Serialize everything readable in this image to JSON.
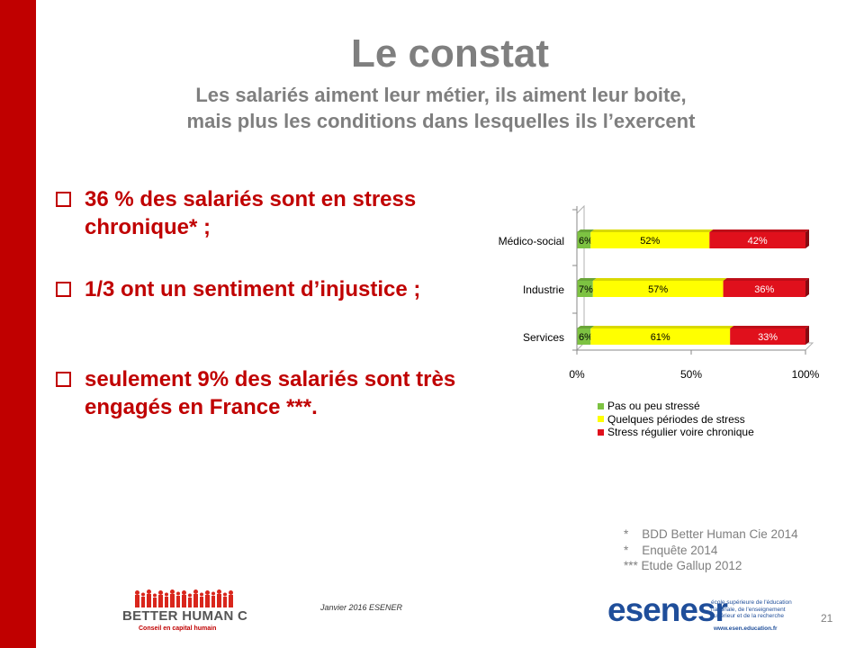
{
  "slide": {
    "title": "Le constat",
    "subtitle_line1": "Les salariés aiment leur métier, ils aiment leur boite,",
    "subtitle_line2": "mais plus les conditions dans lesquelles ils l’exercent",
    "accent_color": "#c00000",
    "title_color": "#7f7f7f"
  },
  "bullets": [
    {
      "line1": "36 % des salariés sont en stress",
      "line2": "chronique* ;"
    },
    {
      "line1": "1/3 ont un sentiment d’injustice ;",
      "line2": ""
    },
    {
      "line1": "seulement 9% des salariés sont très",
      "line2": "engagés en France ***."
    }
  ],
  "chart_data": {
    "type": "bar",
    "orientation": "horizontal",
    "stacked": true,
    "percent_stacked": true,
    "categories": [
      "Médico-social",
      "Industrie",
      "Services"
    ],
    "series": [
      {
        "name": "Pas ou peu stressé",
        "color": "#7dc242",
        "values": [
          6,
          7,
          6
        ],
        "labels": [
          "6%",
          "7%",
          "6%"
        ]
      },
      {
        "name": "Quelques périodes de stress",
        "color": "#ffff00",
        "values": [
          52,
          57,
          61
        ],
        "labels": [
          "52%",
          "57%",
          "61%"
        ]
      },
      {
        "name": "Stress régulier voire chronique",
        "color": "#e0101c",
        "values": [
          42,
          36,
          33
        ],
        "labels": [
          "42%",
          "36%",
          "33%"
        ]
      }
    ],
    "xlim": [
      0,
      100
    ],
    "xticks": [
      "0%",
      "50%",
      "100%"
    ],
    "legend_position": "bottom",
    "grid": false
  },
  "sources": [
    "*    BDD Better Human Cie 2014",
    "*    Enquête 2014",
    "*** Etude Gallup 2012"
  ],
  "footer": {
    "date": "Janvier 2016  ESENER",
    "page_number": "21"
  },
  "logos": {
    "better_human_name": "BETTER HUMAN C",
    "better_human_tag": "Conseil en capital humain",
    "esen_name": "esenesr",
    "esen_desc": "école supérieure de l'éducation nationale, de l'enseignement supérieur et de la recherche",
    "esen_url": "www.esen.education.fr"
  }
}
